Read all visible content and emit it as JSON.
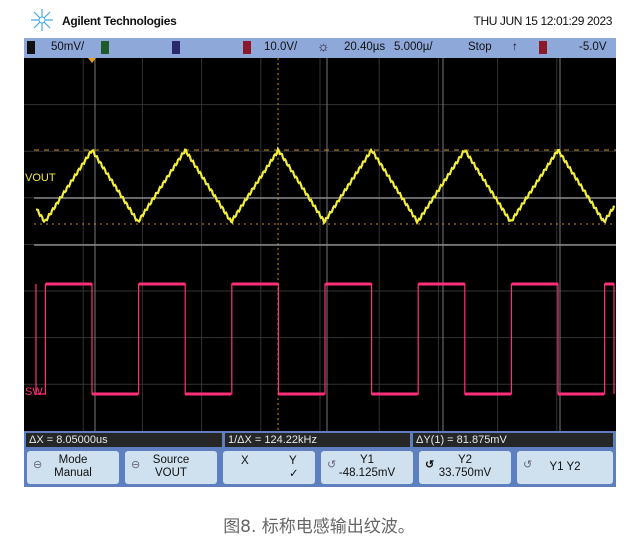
{
  "header": {
    "brand": "Agilent Technologies",
    "datetime": "THU JUN 15 12:01:29 2023"
  },
  "status_bar": {
    "ch1_num": "1",
    "ch1_scale": "50mV/",
    "ch2_num": "2",
    "ch3_num": "3",
    "ch4_num": "4",
    "ch4_scale": "10.0V/",
    "time_pos": "20.40µs",
    "time_scale": "5.000µ/",
    "run_state": "Stop",
    "trigger_edge": "↑",
    "trigger_ch": "4",
    "trigger_level": "-5.0V"
  },
  "colors": {
    "ch1": "#f2ee3a",
    "ch4": "#ff2f7a",
    "ch2": "#2db84a",
    "ch3": "#3a4fd8",
    "statusbar": "#8ea9d9"
  },
  "waveforms": {
    "ch1_label": "VOUT",
    "ch4_label": "SW"
  },
  "measurements": {
    "dx": "ΔX = 8.05000us",
    "inv_dx": "1/ΔX = 124.22kHz",
    "dy": "ΔY(1) = 81.875mV"
  },
  "softkeys": {
    "mode_title": "Mode",
    "mode_value": "Manual",
    "source_title": "Source",
    "source_value": "VOUT",
    "x_label": "X",
    "y_label": "Y",
    "y_check": "✓",
    "y1_title": "Y1",
    "y1_value": "-48.125mV",
    "y2_title": "Y2",
    "y2_value": "33.750mV",
    "y1y2_label": "Y1 Y2"
  },
  "caption": "图8. 标称电感输出纹波。"
}
